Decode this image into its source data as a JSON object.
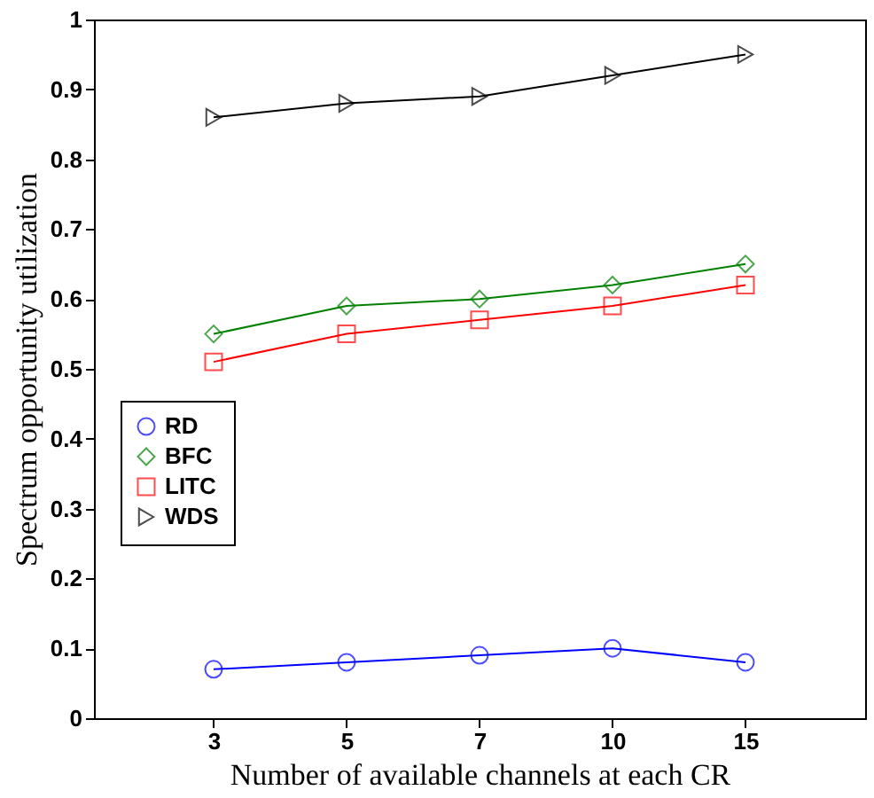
{
  "chart_data": {
    "type": "line",
    "xlabel": "Number of available channels at each CR",
    "ylabel": "Spectrum opportunity utilization",
    "categories": [
      "3",
      "5",
      "7",
      "10",
      "15"
    ],
    "ylim": [
      0,
      1
    ],
    "yticks": [
      0,
      0.1,
      0.2,
      0.3,
      0.4,
      0.5,
      0.6,
      0.7,
      0.8,
      0.9,
      1
    ],
    "grid": false,
    "legend": "left",
    "line_style": "solid",
    "series": [
      {
        "name": "RD",
        "color": "#0000ff",
        "marker": "circle",
        "values": [
          0.07,
          0.08,
          0.09,
          0.1,
          0.08
        ]
      },
      {
        "name": "BFC",
        "color": "#008000",
        "marker": "diamond",
        "values": [
          0.55,
          0.59,
          0.6,
          0.62,
          0.65
        ]
      },
      {
        "name": "LITC",
        "color": "#ff0000",
        "marker": "square",
        "values": [
          0.51,
          0.55,
          0.57,
          0.59,
          0.62
        ]
      },
      {
        "name": "WDS",
        "color": "#000000",
        "marker": "triangle-right",
        "values": [
          0.86,
          0.88,
          0.89,
          0.92,
          0.95
        ]
      }
    ]
  }
}
